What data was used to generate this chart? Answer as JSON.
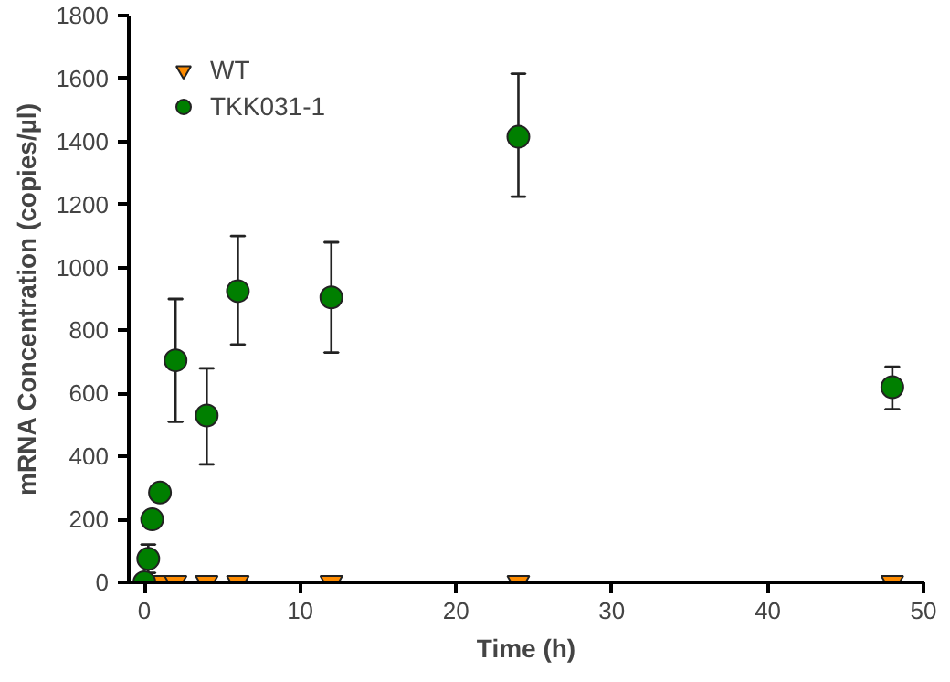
{
  "chart_data": {
    "type": "scatter",
    "xlabel": "Time (h)",
    "ylabel": "mRNA Concentration (copies/µl)",
    "xlim": [
      -1,
      50
    ],
    "xticks": [
      0,
      10,
      20,
      30,
      40,
      50
    ],
    "ylim": [
      0,
      1800
    ],
    "yticks": [
      0,
      200,
      400,
      600,
      800,
      1000,
      1200,
      1400,
      1600,
      1800
    ],
    "grid": false,
    "legend": "top left",
    "series": [
      {
        "name": "WT",
        "color": "#ff8c00",
        "marker": "triangle",
        "x": [
          1,
          2,
          4,
          6,
          12,
          24,
          48
        ],
        "values": [
          0,
          0,
          0,
          0,
          0,
          0,
          0
        ]
      },
      {
        "name": "TKK031-1",
        "color": "#007f00",
        "marker": "circle",
        "x": [
          0,
          0.25,
          0.5,
          1,
          2,
          4,
          6,
          12,
          24,
          48
        ],
        "values": [
          0,
          75,
          200,
          285,
          705,
          530,
          925,
          905,
          1415,
          620
        ],
        "errors": [
          null,
          [
            30,
            120
          ],
          null,
          null,
          [
            510,
            900
          ],
          [
            375,
            680
          ],
          [
            755,
            1100
          ],
          [
            730,
            1080
          ],
          [
            1225,
            1615
          ],
          [
            550,
            685
          ]
        ]
      }
    ]
  }
}
